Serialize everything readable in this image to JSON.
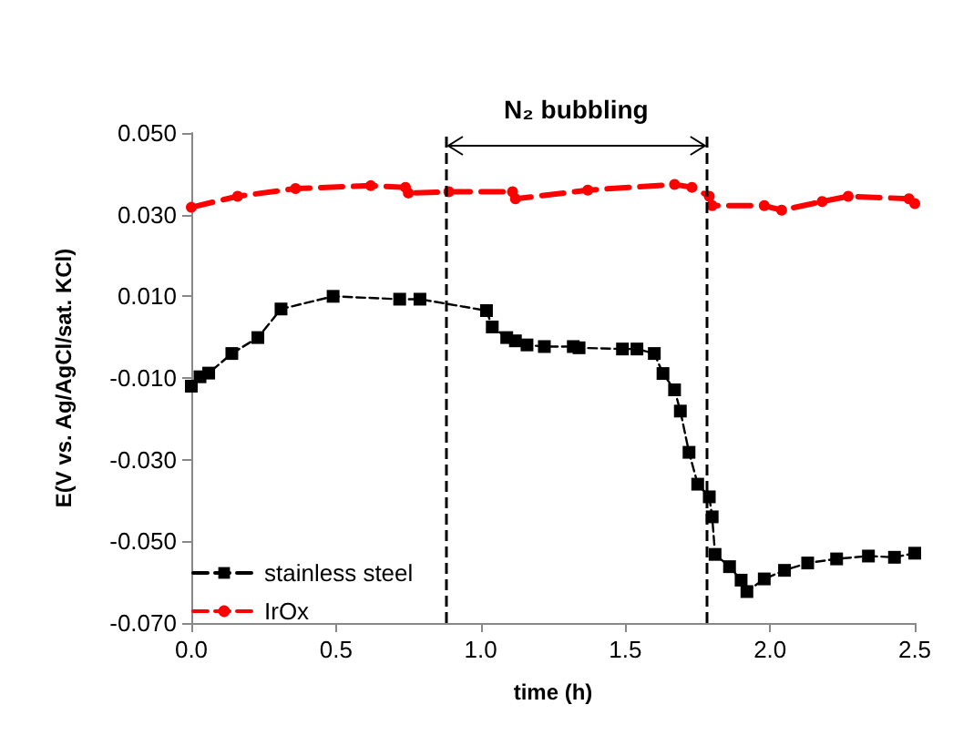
{
  "chart_data": {
    "type": "line",
    "xlabel": "time (h)",
    "ylabel": "E(V vs. Ag/AgCl/sat. KCl)",
    "annotations": [
      "N₂ bubbling"
    ],
    "xlim": [
      0,
      2.5
    ],
    "xticks": [
      {
        "value": 0,
        "label": "0.0"
      },
      {
        "value": 0.5,
        "label": "0.5"
      },
      {
        "value": 1,
        "label": "1.0"
      },
      {
        "value": 1.5,
        "label": "1.5"
      },
      {
        "value": 2,
        "label": "2.0"
      },
      {
        "value": 2.5,
        "label": "2.5"
      }
    ],
    "ylim": [
      -0.07,
      0.05
    ],
    "yticks": [
      {
        "value": -0.07,
        "label": "-0.070"
      },
      {
        "value": -0.05,
        "label": "-0.050"
      },
      {
        "value": -0.03,
        "label": "-0.030"
      },
      {
        "value": -0.01,
        "label": "-0.010"
      },
      {
        "value": 0.01,
        "label": "0.010"
      },
      {
        "value": 0.03,
        "label": "0.030"
      },
      {
        "value": 0.05,
        "label": "0.050"
      }
    ],
    "grid": false,
    "legend": "bottom left",
    "line_style": "dashed",
    "ref_lines": [
      {
        "axis": "x",
        "value": 0.88,
        "color": "#000000",
        "line_style": "dashed"
      },
      {
        "axis": "x",
        "value": 1.78,
        "color": "#000000",
        "line_style": "dashed"
      }
    ],
    "series": [
      {
        "name": "stainless steel",
        "color": "#000000",
        "marker": "square",
        "x": [
          0,
          0.03,
          0.06,
          0.14,
          0.23,
          0.31,
          0.49,
          0.72,
          0.79,
          1.02,
          1.04,
          1.09,
          1.12,
          1.16,
          1.22,
          1.32,
          1.34,
          1.49,
          1.54,
          1.6,
          1.63,
          1.67,
          1.69,
          1.72,
          1.75,
          1.79,
          1.8,
          1.81,
          1.86,
          1.9,
          1.92,
          1.98,
          2.05,
          2.13,
          2.23,
          2.34,
          2.43,
          2.5
        ],
        "values": [
          -0.012,
          -0.0097,
          -0.0088,
          -0.004,
          -0.0001,
          0.0069,
          0.01,
          0.0093,
          0.0093,
          0.0065,
          0.0025,
          -0.0001,
          -0.0009,
          -0.0019,
          -0.0023,
          -0.0023,
          -0.0026,
          -0.0029,
          -0.0029,
          -0.004,
          -0.0089,
          -0.0129,
          -0.0181,
          -0.0282,
          -0.036,
          -0.0391,
          -0.044,
          -0.0532,
          -0.0562,
          -0.0595,
          -0.0623,
          -0.0592,
          -0.0571,
          -0.0553,
          -0.0543,
          -0.0536,
          -0.0539,
          -0.0529
        ]
      },
      {
        "name": "IrOx",
        "color": "#ff0000",
        "marker": "circle",
        "x": [
          0,
          0.16,
          0.36,
          0.62,
          0.74,
          0.75,
          0.89,
          1.11,
          1.12,
          1.37,
          1.67,
          1.73,
          1.79,
          1.8,
          1.98,
          2.04,
          2.18,
          2.27,
          2.48,
          2.5
        ],
        "values": [
          0.0318,
          0.0345,
          0.0364,
          0.0371,
          0.0367,
          0.0353,
          0.0356,
          0.0356,
          0.0339,
          0.036,
          0.0374,
          0.0367,
          0.0345,
          0.0322,
          0.0322,
          0.0311,
          0.0332,
          0.0345,
          0.0339,
          0.0327
        ]
      }
    ]
  }
}
